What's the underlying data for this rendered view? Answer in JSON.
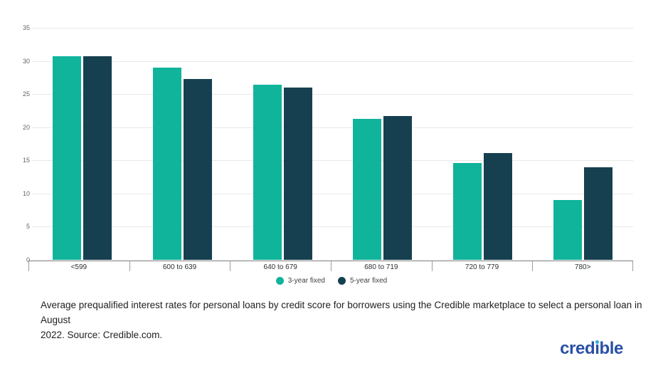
{
  "chart_data": {
    "type": "bar",
    "title": "",
    "categories": [
      "<599",
      "600 to 639",
      "640 to 679",
      "680 to 719",
      "720 to 779",
      "780>"
    ],
    "series": [
      {
        "name": "3-year fixed",
        "color": "#10b49b",
        "values": [
          30.7,
          29.0,
          26.4,
          21.3,
          14.6,
          9.0
        ]
      },
      {
        "name": "5-year fixed",
        "color": "#16404f",
        "values": [
          30.7,
          27.3,
          26.0,
          21.7,
          16.1,
          14.0
        ]
      }
    ],
    "ylim": [
      0,
      35
    ],
    "yticks": [
      0,
      5,
      10,
      15,
      20,
      25,
      30,
      35
    ],
    "xlabel": "",
    "ylabel": "",
    "grid": "horizontal",
    "legend_position": "bottom-center"
  },
  "caption": {
    "line1": "Average prequalified interest rates for personal loans by credit score for borrowers using the Credible marketplace to select a personal loan in August",
    "line2": "2022. Source: Credible.com."
  },
  "branding": {
    "logo_text": "credible",
    "logo_color": "#2a50a5",
    "logo_dot_color": "#37aed2"
  }
}
